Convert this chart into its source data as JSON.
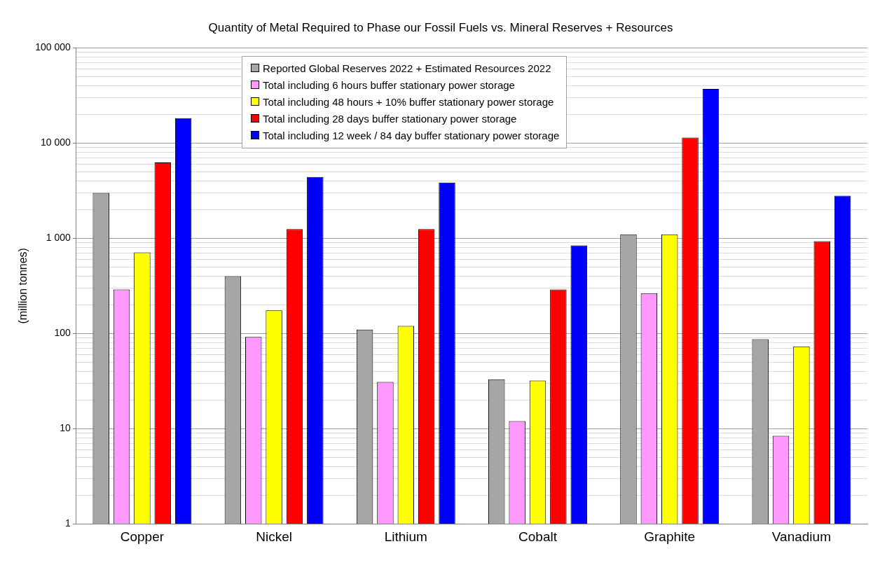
{
  "chart_data": {
    "type": "bar",
    "title": "Quantity of Metal Required to Phase our Fossil Fuels vs. Mineral Reserves + Resources",
    "ylabel": "(million tonnes)",
    "categories": [
      "Copper",
      "Nickel",
      "Lithium",
      "Cobalt",
      "Graphite",
      "Vanadium"
    ],
    "series": [
      {
        "name": "Reported Global Reserves 2022 + Estimated Resources 2022",
        "color": "#a6a6a6",
        "values": [
          3000,
          400,
          110,
          33,
          1100,
          87
        ]
      },
      {
        "name": "Total including 6 hours buffer stationary power storage",
        "color": "#ff99ff",
        "values": [
          290,
          92,
          31,
          12,
          265,
          8.4
        ]
      },
      {
        "name": "Total including 48 hours + 10% buffer stationary power storage",
        "color": "#ffff00",
        "values": [
          710,
          175,
          120,
          32,
          1100,
          73
        ]
      },
      {
        "name": "Total including 28 days buffer stationary power storage",
        "color": "#ff0000",
        "values": [
          6250,
          1250,
          1250,
          290,
          11400,
          930
        ]
      },
      {
        "name": "Total including 12 week / 84 day buffer stationary power storage",
        "color": "#0000ff",
        "values": [
          18300,
          4400,
          3850,
          840,
          37000,
          2800
        ]
      }
    ],
    "log": "y",
    "ylim": [
      1,
      100000
    ],
    "yticks": [
      1,
      {
        "value": 2,
        "label": null
      },
      {
        "value": 3,
        "label": null
      },
      {
        "value": 4,
        "label": null
      },
      {
        "value": 5,
        "label": null
      },
      {
        "value": 6,
        "label": null
      },
      {
        "value": 7,
        "label": null
      },
      {
        "value": 8,
        "label": null
      },
      {
        "value": 9,
        "label": null
      },
      10,
      {
        "value": 20,
        "label": null
      },
      {
        "value": 30,
        "label": null
      },
      {
        "value": 40,
        "label": null
      },
      {
        "value": 50,
        "label": null
      },
      {
        "value": 60,
        "label": null
      },
      {
        "value": 70,
        "label": null
      },
      {
        "value": 80,
        "label": null
      },
      {
        "value": 90,
        "label": null
      },
      100,
      {
        "value": 200,
        "label": null
      },
      {
        "value": 300,
        "label": null
      },
      {
        "value": 400,
        "label": null
      },
      {
        "value": 500,
        "label": null
      },
      {
        "value": 600,
        "label": null
      },
      {
        "value": 700,
        "label": null
      },
      {
        "value": 800,
        "label": null
      },
      {
        "value": 900,
        "label": null
      },
      {
        "value": 1000,
        "label": "1 000"
      },
      {
        "value": 2000,
        "label": null
      },
      {
        "value": 3000,
        "label": null
      },
      {
        "value": 4000,
        "label": null
      },
      {
        "value": 5000,
        "label": null
      },
      {
        "value": 6000,
        "label": null
      },
      {
        "value": 7000,
        "label": null
      },
      {
        "value": 8000,
        "label": null
      },
      {
        "value": 9000,
        "label": null
      },
      {
        "value": 10000,
        "label": "10 000"
      },
      {
        "value": 20000,
        "label": null
      },
      {
        "value": 30000,
        "label": null
      },
      {
        "value": 40000,
        "label": null
      },
      {
        "value": 50000,
        "label": null
      },
      {
        "value": 60000,
        "label": null
      },
      {
        "value": 70000,
        "label": null
      },
      {
        "value": 80000,
        "label": null
      },
      {
        "value": 90000,
        "label": null
      },
      {
        "value": 100000,
        "label": "100 000"
      }
    ],
    "grid": "y",
    "legend": "top"
  }
}
